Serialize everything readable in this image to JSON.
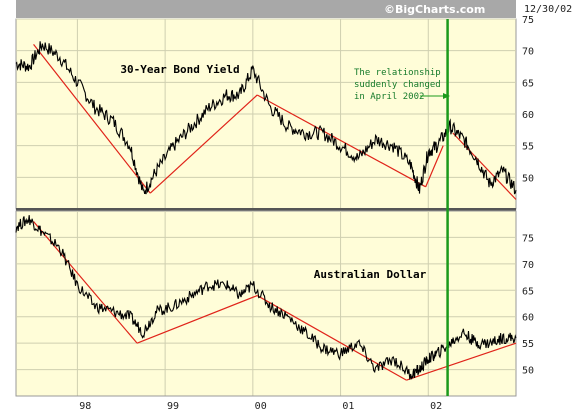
{
  "header": {
    "brand": "©BigCharts.com",
    "date": "12/30/02"
  },
  "colors": {
    "panel_bg": "#fffdd8",
    "grid": "#cfcfb0",
    "price_line": "#000000",
    "trend_line": "#e0241a",
    "marker": "#1b9a1b"
  },
  "x_axis": {
    "labels": [
      "98",
      "99",
      "00",
      "01",
      "02"
    ]
  },
  "chart_data": [
    {
      "type": "line",
      "title": "30-Year Bond Yield",
      "ylim": [
        45,
        75
      ],
      "yticks": [
        50,
        55,
        60,
        65,
        70,
        75
      ],
      "series": [
        {
          "x": [
            1997.3,
            1997.45,
            1997.6,
            1997.8,
            1998.0,
            1998.2,
            1998.4,
            1998.6,
            1998.75,
            1998.9,
            1999.1,
            1999.3,
            1999.5,
            1999.7,
            1999.85,
            2000.0,
            2000.2,
            2000.4,
            2000.6,
            2000.8,
            2001.0,
            2001.2,
            2001.4,
            2001.6,
            2001.8,
            2001.9,
            2002.0,
            2002.1,
            2002.25,
            2002.4,
            2002.55,
            2002.7,
            2002.85,
            2003.0
          ],
          "y": [
            68,
            67.5,
            71,
            69,
            65,
            61,
            59,
            55,
            47.5,
            51,
            55,
            58,
            61,
            63,
            63,
            67,
            61,
            58,
            57,
            57,
            55,
            53,
            56,
            55,
            52,
            48,
            54,
            55,
            58,
            56,
            53,
            49,
            51,
            48
          ]
        }
      ],
      "trendlines": [
        {
          "x": [
            1997.5,
            1998.83
          ],
          "y": [
            71,
            47.5
          ]
        },
        {
          "x": [
            1998.83,
            2000.05
          ],
          "y": [
            47.5,
            63
          ]
        },
        {
          "x": [
            2000.05,
            2001.97
          ],
          "y": [
            63,
            48.5
          ]
        },
        {
          "x": [
            1997.97,
            1997.97
          ],
          "y": [
            48.5,
            48.5
          ]
        },
        {
          "x": [
            2001.97,
            2002.17
          ],
          "y": [
            48.5,
            55
          ]
        },
        {
          "x": [
            2002.28,
            2003.0
          ],
          "y": [
            57,
            46.5
          ]
        }
      ],
      "annotation": {
        "lines": [
          "The relationship",
          "suddenly changed",
          "in April 2002"
        ]
      }
    },
    {
      "type": "line",
      "title": "Australian Dollar",
      "ylim": [
        45,
        80
      ],
      "yticks": [
        50,
        55,
        60,
        65,
        70,
        75
      ],
      "series": [
        {
          "x": [
            1997.3,
            1997.45,
            1997.6,
            1997.8,
            1998.0,
            1998.2,
            1998.4,
            1998.6,
            1998.75,
            1998.9,
            1999.1,
            1999.3,
            1999.5,
            1999.7,
            1999.85,
            2000.0,
            2000.2,
            2000.4,
            2000.6,
            2000.8,
            2001.0,
            2001.2,
            2001.4,
            2001.6,
            2001.8,
            2001.9,
            2002.0,
            2002.1,
            2002.25,
            2002.4,
            2002.55,
            2002.7,
            2002.85,
            2003.0
          ],
          "y": [
            77,
            78.5,
            76,
            73,
            66,
            62,
            61,
            60,
            57,
            61,
            62,
            64,
            66,
            66,
            64,
            66,
            62,
            60,
            57,
            54,
            53,
            55,
            50,
            52,
            49,
            50,
            52,
            53,
            55,
            57,
            55,
            55,
            56,
            56
          ]
        }
      ],
      "trendlines": [
        {
          "x": [
            1997.5,
            1998.68
          ],
          "y": [
            78,
            55
          ]
        },
        {
          "x": [
            1998.68,
            2000.05
          ],
          "y": [
            55,
            64
          ]
        },
        {
          "x": [
            2000.05,
            2001.75
          ],
          "y": [
            64,
            48
          ]
        },
        {
          "x": [
            2001.75,
            2003.0
          ],
          "y": [
            48,
            55
          ]
        }
      ]
    }
  ]
}
